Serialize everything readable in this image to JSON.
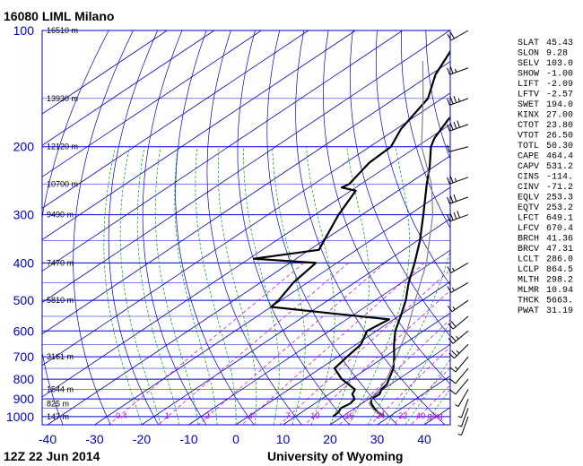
{
  "chart_data": {
    "type": "line",
    "title": "16080 LIML Milano",
    "date_label": "12Z 22 Jun 2014",
    "source_label": "University of Wyoming",
    "x_ticks": [
      -40,
      -30,
      -20,
      -10,
      0,
      10,
      20,
      30,
      40
    ],
    "xlim": [
      -40,
      45
    ],
    "y_scale": "log",
    "ylim": [
      1050,
      100
    ],
    "y_ticks": [
      100,
      200,
      300,
      400,
      500,
      600,
      700,
      800,
      900,
      1000
    ],
    "height_labels": [
      {
        "p": 100,
        "text": "16510 m"
      },
      {
        "p": 150,
        "text": "13930 m"
      },
      {
        "p": 200,
        "text": "12120 m"
      },
      {
        "p": 250,
        "text": "10700 m"
      },
      {
        "p": 300,
        "text": "9490 m"
      },
      {
        "p": 400,
        "text": "7470 m"
      },
      {
        "p": 500,
        "text": "5810 m"
      },
      {
        "p": 700,
        "text": "3161 m"
      },
      {
        "p": 850,
        "text": "1544 m"
      },
      {
        "p": 925,
        "text": "825 m"
      },
      {
        "p": 1000,
        "text": "147 m"
      }
    ],
    "mixing_ratio_labels": [
      "0.4",
      "1",
      "2",
      "4",
      "7",
      "10",
      "16",
      "24",
      "32",
      "40 g/kg"
    ],
    "series": [
      {
        "name": "temperature",
        "color": "#000000",
        "points": [
          [
            1000,
            29.0
          ],
          [
            975,
            26.2
          ],
          [
            950,
            24.0
          ],
          [
            925,
            22.0
          ],
          [
            900,
            20.5
          ],
          [
            875,
            20.8
          ],
          [
            850,
            19.6
          ],
          [
            825,
            19.2
          ],
          [
            800,
            18.0
          ],
          [
            750,
            15.5
          ],
          [
            700,
            12.0
          ],
          [
            650,
            8.0
          ],
          [
            600,
            4.0
          ],
          [
            550,
            0.5
          ],
          [
            500,
            -3.5
          ],
          [
            450,
            -8.5
          ],
          [
            400,
            -13.5
          ],
          [
            350,
            -19.5
          ],
          [
            300,
            -27.0
          ],
          [
            250,
            -36.0
          ],
          [
            225,
            -41.0
          ],
          [
            200,
            -47.0
          ],
          [
            190,
            -49.0
          ],
          [
            170,
            -52.0
          ],
          [
            150,
            -54.0
          ],
          [
            140,
            -57.0
          ],
          [
            120,
            -62.0
          ],
          [
            110,
            -64.0
          ],
          [
            100,
            -65.0
          ]
        ]
      },
      {
        "name": "dewpoint",
        "color": "#000000",
        "points": [
          [
            1000,
            18.0
          ],
          [
            975,
            17.8
          ],
          [
            950,
            17.0
          ],
          [
            925,
            17.5
          ],
          [
            900,
            17.0
          ],
          [
            875,
            15.0
          ],
          [
            850,
            14.0
          ],
          [
            800,
            8.0
          ],
          [
            750,
            3.0
          ],
          [
            700,
            2.0
          ],
          [
            650,
            1.0
          ],
          [
            600,
            -2.0
          ],
          [
            560,
            -1.0
          ],
          [
            520,
            -30.0
          ],
          [
            500,
            -30.5
          ],
          [
            450,
            -33.0
          ],
          [
            400,
            -34.5
          ],
          [
            390,
            -49.0
          ],
          [
            370,
            -38.0
          ],
          [
            300,
            -45.0
          ],
          [
            260,
            -49.0
          ],
          [
            255,
            -53.0
          ],
          [
            250,
            -52.5
          ],
          [
            220,
            -55.0
          ],
          [
            200,
            -55.5
          ],
          [
            180,
            -59.0
          ],
          [
            150,
            -63.0
          ],
          [
            130,
            -69.0
          ],
          [
            100,
            -77.0
          ]
        ]
      },
      {
        "name": "parcel",
        "color": "#808080",
        "points": [
          [
            1000,
            29.0
          ],
          [
            960,
            24.5
          ],
          [
            925,
            21.5
          ],
          [
            880,
            19.8
          ],
          [
            850,
            19.2
          ],
          [
            800,
            17.5
          ],
          [
            700,
            12.5
          ],
          [
            600,
            6.5
          ],
          [
            500,
            -1.5
          ],
          [
            400,
            -11.0
          ],
          [
            300,
            -25.0
          ],
          [
            250,
            -35.0
          ],
          [
            200,
            -49.0
          ],
          [
            150,
            -64.0
          ],
          [
            120,
            -76.0
          ]
        ]
      }
    ]
  },
  "indices": [
    {
      "name": "SLAT",
      "value": "45.43"
    },
    {
      "name": "SLON",
      "value": "9.28"
    },
    {
      "name": "SELV",
      "value": "103.0"
    },
    {
      "name": "SHOW",
      "value": "-1.00"
    },
    {
      "name": "LIFT",
      "value": "-2.09"
    },
    {
      "name": "LFTV",
      "value": "-2.57"
    },
    {
      "name": "SWET",
      "value": "194.0"
    },
    {
      "name": "KINX",
      "value": "27.00"
    },
    {
      "name": "CTOT",
      "value": "23.80"
    },
    {
      "name": "VTOT",
      "value": "26.50"
    },
    {
      "name": "TOTL",
      "value": "50.30"
    },
    {
      "name": "CAPE",
      "value": "464.4"
    },
    {
      "name": "CAPV",
      "value": "531.2"
    },
    {
      "name": "CINS",
      "value": "-114."
    },
    {
      "name": "CINV",
      "value": "-71.2"
    },
    {
      "name": "EQLV",
      "value": "253.3"
    },
    {
      "name": "EQTV",
      "value": "253.2"
    },
    {
      "name": "LFCT",
      "value": "649.1"
    },
    {
      "name": "LFCV",
      "value": "670.4"
    },
    {
      "name": "BRCH",
      "value": "41.36"
    },
    {
      "name": "BRCV",
      "value": "47.31"
    },
    {
      "name": "LCLT",
      "value": "286.0"
    },
    {
      "name": "LCLP",
      "value": "864.5"
    },
    {
      "name": "MLTH",
      "value": "298.2"
    },
    {
      "name": "MLMR",
      "value": "10.94"
    },
    {
      "name": "THCK",
      "value": "5663."
    },
    {
      "name": "PWAT",
      "value": "31.19"
    }
  ],
  "wind_barbs": [
    {
      "p": 100,
      "dir": 240,
      "kt": 20
    },
    {
      "p": 125,
      "dir": 250,
      "kt": 25
    },
    {
      "p": 150,
      "dir": 250,
      "kt": 35
    },
    {
      "p": 175,
      "dir": 250,
      "kt": 40
    },
    {
      "p": 200,
      "dir": 255,
      "kt": 10
    },
    {
      "p": 240,
      "dir": 250,
      "kt": 25
    },
    {
      "p": 270,
      "dir": 250,
      "kt": 30
    },
    {
      "p": 300,
      "dir": 250,
      "kt": 40
    },
    {
      "p": 400,
      "dir": 240,
      "kt": 15
    },
    {
      "p": 450,
      "dir": 240,
      "kt": 15
    },
    {
      "p": 500,
      "dir": 235,
      "kt": 15
    },
    {
      "p": 550,
      "dir": 230,
      "kt": 20
    },
    {
      "p": 600,
      "dir": 230,
      "kt": 25
    },
    {
      "p": 650,
      "dir": 225,
      "kt": 25
    },
    {
      "p": 700,
      "dir": 220,
      "kt": 15
    },
    {
      "p": 750,
      "dir": 220,
      "kt": 10
    },
    {
      "p": 800,
      "dir": 220,
      "kt": 10
    },
    {
      "p": 850,
      "dir": 210,
      "kt": 5
    },
    {
      "p": 900,
      "dir": 200,
      "kt": 5
    },
    {
      "p": 950,
      "dir": 200,
      "kt": 5
    },
    {
      "p": 1000,
      "dir": 200,
      "kt": 5
    }
  ],
  "colors": {
    "isobar": "#0000cc",
    "isotherm": "#0000cc",
    "dry_adiabat": "#0000cc",
    "moist_adiabat": "#00a000",
    "mixing_ratio": "#cc00cc"
  }
}
